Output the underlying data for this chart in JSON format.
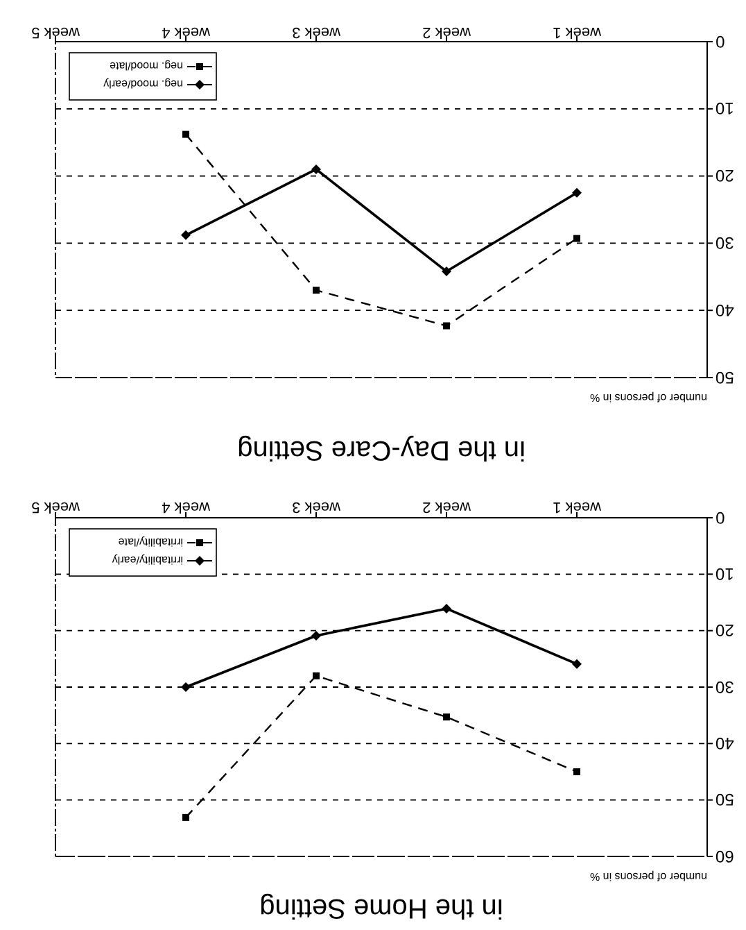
{
  "chart_data": [
    {
      "type": "line",
      "title": "in the Day-Care Setting",
      "annotations": [
        "number of persons in %"
      ],
      "categories": [
        "week 5",
        "week 4",
        "week 3",
        "week 2",
        "week 1"
      ],
      "ylim": [
        50,
        0
      ],
      "yticks": [
        0,
        10,
        20,
        30,
        40,
        50
      ],
      "grid": "y",
      "legend": "top left",
      "series": [
        {
          "name": "neg. mood/early",
          "color": "#000000",
          "marker": "diamond",
          "line_style": "solid",
          "values": [
            null,
            28.8,
            19,
            34.2,
            22.5
          ]
        },
        {
          "name": "neg. mood/late",
          "color": "#000000",
          "marker": "square",
          "line_style": "dashed",
          "values": [
            null,
            13.8,
            37,
            42.3,
            29.3
          ]
        }
      ]
    },
    {
      "type": "line",
      "title": "in the Home Setting",
      "annotations": [
        "number of persons in %"
      ],
      "categories": [
        "week 5",
        "week 4",
        "week 3",
        "week 2",
        "week 1"
      ],
      "ylim": [
        60,
        0
      ],
      "yticks": [
        0,
        10,
        20,
        30,
        40,
        50,
        60
      ],
      "grid": "y",
      "legend": "top left",
      "series": [
        {
          "name": "irritability/early",
          "color": "#000000",
          "marker": "diamond",
          "line_style": "solid",
          "values": [
            null,
            30,
            20.9,
            16.1,
            25.9
          ]
        },
        {
          "name": "irritability/late",
          "color": "#000000",
          "marker": "square",
          "line_style": "dashed",
          "values": [
            null,
            53.1,
            28,
            35.3,
            45
          ]
        }
      ]
    }
  ]
}
